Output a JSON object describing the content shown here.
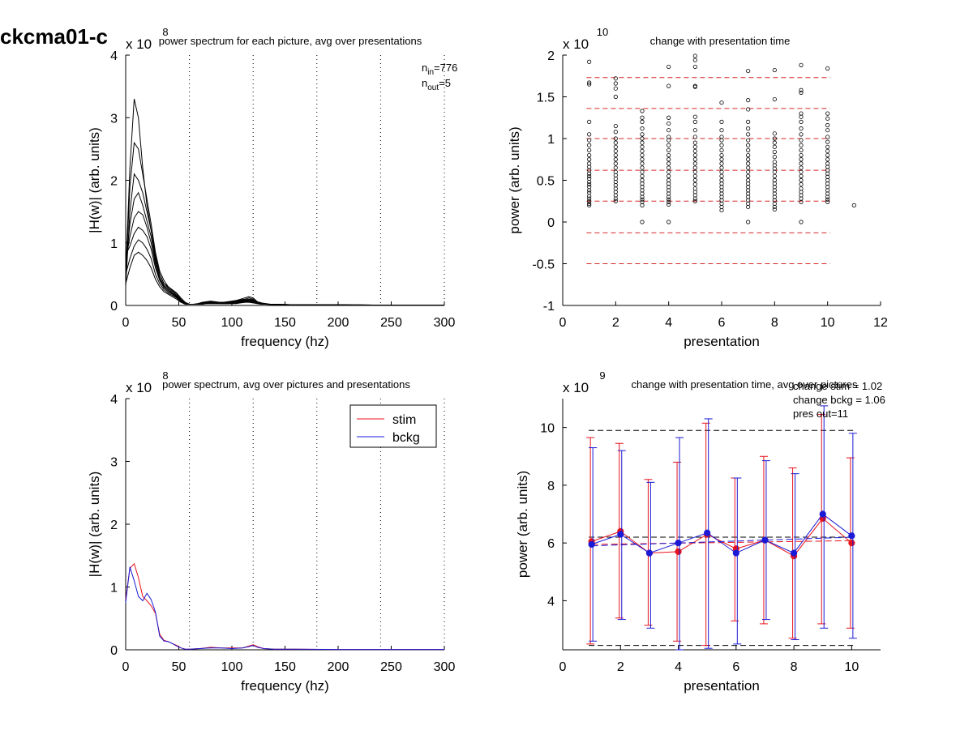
{
  "page_title": "ckcma01-c",
  "chart_data": [
    {
      "id": "p1",
      "type": "line",
      "title": "power spectrum for each picture, avg over presentations",
      "xlabel": "frequency (hz)",
      "ylabel": "|H(w)| (arb. units)",
      "multiplier": "x 10",
      "multiplier_exp": "8",
      "xlim": [
        0,
        300
      ],
      "ylim": [
        0,
        4
      ],
      "xticks": [
        0,
        50,
        100,
        150,
        200,
        250,
        300
      ],
      "yticks": [
        0,
        1,
        2,
        3,
        4
      ],
      "vlines": [
        60,
        120,
        180,
        240,
        300
      ],
      "annotation": {
        "n_in_base": "n",
        "n_in_sub": "in",
        "n_in_val": "=776",
        "n_out_base": "n",
        "n_out_sub": "out",
        "n_out_val": "=5"
      },
      "line_color": "#000000",
      "frequencies": [
        0,
        4,
        8,
        12,
        16,
        20,
        24,
        28,
        32,
        36,
        40,
        44,
        48,
        52,
        56,
        60,
        64,
        68,
        72,
        76,
        80,
        84,
        88,
        92,
        96,
        100,
        104,
        108,
        112,
        116,
        120,
        124,
        128,
        132,
        136,
        140,
        150,
        160,
        180,
        200,
        220,
        240,
        260,
        280,
        300
      ],
      "series": [
        {
          "values": [
            0.5,
            2.2,
            3.3,
            3.0,
            2.2,
            1.6,
            1.2,
            0.75,
            0.5,
            0.35,
            0.3,
            0.25,
            0.2,
            0.12,
            0.05,
            0.02,
            0.02,
            0.03,
            0.05,
            0.06,
            0.07,
            0.06,
            0.05,
            0.05,
            0.06,
            0.07,
            0.08,
            0.1,
            0.12,
            0.14,
            0.12,
            0.06,
            0.04,
            0.03,
            0.02,
            0.02,
            0.015,
            0.01,
            0.01,
            0.01,
            0.01,
            0.005,
            0.005,
            0.005,
            0.005
          ]
        },
        {
          "values": [
            0.4,
            1.9,
            2.6,
            2.5,
            2.1,
            1.7,
            1.3,
            0.85,
            0.55,
            0.4,
            0.3,
            0.24,
            0.18,
            0.1,
            0.04,
            0.02,
            0.02,
            0.03,
            0.04,
            0.05,
            0.06,
            0.06,
            0.05,
            0.05,
            0.05,
            0.06,
            0.07,
            0.09,
            0.1,
            0.12,
            0.1,
            0.05,
            0.03,
            0.03,
            0.02,
            0.02,
            0.015,
            0.01,
            0.01,
            0.01,
            0.01,
            0.005,
            0.005,
            0.005,
            0.005
          ]
        },
        {
          "values": [
            0.3,
            1.5,
            2.1,
            2.0,
            1.8,
            1.5,
            1.2,
            0.8,
            0.5,
            0.35,
            0.28,
            0.22,
            0.16,
            0.09,
            0.04,
            0.02,
            0.02,
            0.02,
            0.04,
            0.05,
            0.05,
            0.05,
            0.04,
            0.04,
            0.05,
            0.05,
            0.06,
            0.08,
            0.09,
            0.1,
            0.09,
            0.05,
            0.03,
            0.02,
            0.02,
            0.015,
            0.01,
            0.01,
            0.01,
            0.01,
            0.005,
            0.005,
            0.005,
            0.005,
            0.005
          ]
        },
        {
          "values": [
            0.6,
            1.3,
            1.7,
            1.8,
            1.6,
            1.35,
            1.1,
            0.7,
            0.45,
            0.32,
            0.26,
            0.2,
            0.15,
            0.08,
            0.03,
            0.02,
            0.02,
            0.02,
            0.03,
            0.04,
            0.05,
            0.05,
            0.04,
            0.04,
            0.04,
            0.05,
            0.05,
            0.07,
            0.08,
            0.09,
            0.08,
            0.04,
            0.03,
            0.02,
            0.02,
            0.015,
            0.01,
            0.01,
            0.01,
            0.01,
            0.005,
            0.005,
            0.005,
            0.005,
            0.005
          ]
        },
        {
          "values": [
            0.7,
            1.1,
            1.4,
            1.5,
            1.45,
            1.25,
            1.0,
            0.65,
            0.42,
            0.3,
            0.24,
            0.19,
            0.14,
            0.07,
            0.03,
            0.02,
            0.02,
            0.02,
            0.03,
            0.04,
            0.04,
            0.04,
            0.04,
            0.04,
            0.04,
            0.04,
            0.05,
            0.06,
            0.07,
            0.08,
            0.07,
            0.04,
            0.03,
            0.02,
            0.02,
            0.015,
            0.01,
            0.01,
            0.01,
            0.01,
            0.005,
            0.005,
            0.005,
            0.005,
            0.005
          ]
        },
        {
          "values": [
            0.8,
            0.95,
            1.15,
            1.25,
            1.2,
            1.1,
            0.9,
            0.6,
            0.4,
            0.28,
            0.22,
            0.18,
            0.13,
            0.07,
            0.03,
            0.02,
            0.02,
            0.02,
            0.03,
            0.03,
            0.04,
            0.04,
            0.03,
            0.03,
            0.03,
            0.04,
            0.04,
            0.05,
            0.06,
            0.07,
            0.06,
            0.04,
            0.02,
            0.02,
            0.015,
            0.01,
            0.01,
            0.01,
            0.01,
            0.01,
            0.005,
            0.005,
            0.005,
            0.005,
            0.005
          ]
        },
        {
          "values": [
            0.5,
            0.75,
            0.95,
            1.05,
            1.0,
            0.9,
            0.75,
            0.5,
            0.35,
            0.25,
            0.2,
            0.16,
            0.12,
            0.06,
            0.03,
            0.02,
            0.02,
            0.02,
            0.02,
            0.03,
            0.03,
            0.03,
            0.03,
            0.03,
            0.03,
            0.03,
            0.04,
            0.05,
            0.05,
            0.06,
            0.05,
            0.03,
            0.02,
            0.02,
            0.015,
            0.01,
            0.01,
            0.01,
            0.01,
            0.01,
            0.005,
            0.005,
            0.005,
            0.005,
            0.005
          ]
        },
        {
          "values": [
            0.35,
            0.6,
            0.8,
            0.85,
            0.8,
            0.72,
            0.6,
            0.42,
            0.3,
            0.22,
            0.18,
            0.14,
            0.1,
            0.05,
            0.02,
            0.02,
            0.02,
            0.02,
            0.02,
            0.03,
            0.03,
            0.03,
            0.03,
            0.03,
            0.03,
            0.03,
            0.03,
            0.04,
            0.05,
            0.05,
            0.04,
            0.03,
            0.02,
            0.02,
            0.015,
            0.01,
            0.01,
            0.01,
            0.01,
            0.01,
            0.005,
            0.005,
            0.005,
            0.005,
            0.005
          ]
        }
      ]
    },
    {
      "id": "p2",
      "type": "scatter",
      "title": "change with presentation time",
      "xlabel": "presentation",
      "ylabel": "power (arb. units)",
      "multiplier": "x 10",
      "multiplier_exp": "10",
      "xlim": [
        0,
        12
      ],
      "ylim": [
        -1,
        2
      ],
      "xticks": [
        0,
        2,
        4,
        6,
        8,
        10,
        12
      ],
      "yticks": [
        -1,
        -0.5,
        0,
        0.5,
        1,
        1.5,
        2
      ],
      "ytick_labels": [
        "-1",
        "-0.5",
        "0",
        "0.5",
        "1",
        "1.5",
        "2"
      ],
      "hlines": [
        1.73,
        1.36,
        1.0,
        0.62,
        0.25,
        -0.13,
        -0.5
      ],
      "hline_color": "#d62728",
      "points": [
        {
          "x": 1,
          "ys": [
            1.92,
            1.67,
            1.65,
            1.2,
            1.05,
            0.98,
            0.92,
            0.86,
            0.8,
            0.75,
            0.7,
            0.66,
            0.62,
            0.58,
            0.55,
            0.52,
            0.48,
            0.45,
            0.42,
            0.38,
            0.35,
            0.31,
            0.28,
            0.25,
            0.22,
            0.2
          ]
        },
        {
          "x": 2,
          "ys": [
            1.72,
            1.66,
            1.6,
            1.5,
            1.15,
            1.08,
            1.0,
            0.95,
            0.9,
            0.85,
            0.8,
            0.75,
            0.7,
            0.65,
            0.6,
            0.56,
            0.52,
            0.48,
            0.44,
            0.4,
            0.36,
            0.32,
            0.28,
            0.25
          ]
        },
        {
          "x": 3,
          "ys": [
            1.33,
            1.25,
            1.2,
            1.12,
            1.05,
            1.0,
            0.95,
            0.9,
            0.85,
            0.8,
            0.75,
            0.7,
            0.65,
            0.6,
            0.55,
            0.5,
            0.46,
            0.42,
            0.38,
            0.34,
            0.3,
            0.27,
            0.24,
            0.2,
            0.0
          ]
        },
        {
          "x": 4,
          "ys": [
            1.86,
            1.63,
            1.25,
            1.18,
            1.1,
            1.02,
            0.98,
            0.92,
            0.86,
            0.8,
            0.75,
            0.7,
            0.65,
            0.6,
            0.55,
            0.5,
            0.46,
            0.42,
            0.38,
            0.34,
            0.3,
            0.27,
            0.24,
            0.21,
            0.0
          ]
        },
        {
          "x": 5,
          "ys": [
            1.99,
            1.94,
            1.86,
            1.63,
            1.62,
            1.26,
            1.2,
            1.1,
            1.02,
            0.95,
            0.9,
            0.85,
            0.8,
            0.75,
            0.7,
            0.65,
            0.6,
            0.55,
            0.5,
            0.45,
            0.4,
            0.36,
            0.32,
            0.28,
            0.25
          ]
        },
        {
          "x": 6,
          "ys": [
            1.43,
            1.2,
            1.1,
            1.02,
            0.98,
            0.92,
            0.86,
            0.8,
            0.75,
            0.7,
            0.65,
            0.6,
            0.55,
            0.5,
            0.46,
            0.42,
            0.38,
            0.34,
            0.3,
            0.26,
            0.22,
            0.18,
            0.14
          ]
        },
        {
          "x": 7,
          "ys": [
            1.81,
            1.46,
            1.35,
            1.2,
            1.12,
            1.05,
            0.98,
            0.92,
            0.86,
            0.8,
            0.75,
            0.7,
            0.65,
            0.6,
            0.55,
            0.5,
            0.46,
            0.42,
            0.38,
            0.34,
            0.3,
            0.26,
            0.22,
            0.18,
            0.0
          ]
        },
        {
          "x": 8,
          "ys": [
            1.82,
            1.47,
            1.06,
            1.0,
            0.95,
            0.9,
            0.84,
            0.78,
            0.72,
            0.68,
            0.64,
            0.6,
            0.55,
            0.5,
            0.46,
            0.42,
            0.38,
            0.34,
            0.3,
            0.26,
            0.22,
            0.18,
            0.15
          ]
        },
        {
          "x": 9,
          "ys": [
            1.88,
            1.58,
            1.55,
            1.3,
            1.26,
            1.2,
            1.12,
            1.05,
            0.98,
            0.92,
            0.86,
            0.8,
            0.75,
            0.7,
            0.65,
            0.6,
            0.55,
            0.5,
            0.45,
            0.4,
            0.36,
            0.32,
            0.28,
            0.24,
            0.0
          ]
        },
        {
          "x": 10,
          "ys": [
            1.84,
            1.3,
            1.24,
            1.16,
            1.1,
            1.02,
            0.96,
            0.9,
            0.85,
            0.8,
            0.75,
            0.7,
            0.66,
            0.62,
            0.58,
            0.54,
            0.5,
            0.46,
            0.42,
            0.38,
            0.34,
            0.3,
            0.27,
            0.24
          ]
        },
        {
          "x": 11,
          "ys": [
            0.2
          ]
        }
      ]
    },
    {
      "id": "p3",
      "type": "line",
      "title": "power spectrum, avg over pictures and presentations",
      "xlabel": "frequency (hz)",
      "ylabel": "|H(w)| (arb. units)",
      "multiplier": "x 10",
      "multiplier_exp": "8",
      "xlim": [
        0,
        300
      ],
      "ylim": [
        0,
        4
      ],
      "xticks": [
        0,
        50,
        100,
        150,
        200,
        250,
        300
      ],
      "yticks": [
        0,
        1,
        2,
        3,
        4
      ],
      "vlines": [
        60,
        120,
        180,
        240,
        300
      ],
      "legend_position": "top-right",
      "frequencies": [
        0,
        4,
        8,
        12,
        16,
        20,
        24,
        28,
        32,
        36,
        40,
        44,
        48,
        52,
        56,
        60,
        70,
        80,
        90,
        100,
        110,
        116,
        120,
        124,
        130,
        140,
        160,
        200,
        250,
        300
      ],
      "series": [
        {
          "name": "stim",
          "color": "#e8121c",
          "values": [
            0.8,
            1.3,
            1.37,
            1.15,
            0.85,
            0.78,
            0.7,
            0.58,
            0.25,
            0.15,
            0.13,
            0.1,
            0.07,
            0.03,
            0.01,
            0.01,
            0.02,
            0.04,
            0.03,
            0.03,
            0.03,
            0.06,
            0.08,
            0.05,
            0.02,
            0.01,
            0.01,
            0.005,
            0.005,
            0.005
          ]
        },
        {
          "name": "bckg",
          "color": "#1a1ad6",
          "values": [
            0.75,
            1.32,
            1.1,
            0.85,
            0.78,
            0.9,
            0.8,
            0.6,
            0.22,
            0.14,
            0.13,
            0.1,
            0.06,
            0.03,
            0.01,
            0.01,
            0.02,
            0.03,
            0.03,
            0.02,
            0.03,
            0.05,
            0.07,
            0.04,
            0.02,
            0.01,
            0.01,
            0.005,
            0.005,
            0.005
          ]
        }
      ]
    },
    {
      "id": "p4",
      "type": "line",
      "title": "change with presentation time, avg over pictures",
      "xlabel": "presentation",
      "ylabel": "power (arb. units)",
      "multiplier": "x 10",
      "multiplier_exp": "9",
      "xlim": [
        0,
        11
      ],
      "ylim": [
        2.3,
        11
      ],
      "xticks": [
        0,
        2,
        4,
        6,
        8,
        10
      ],
      "yticks": [
        4,
        6,
        8,
        10
      ],
      "hlines_black": [
        9.9,
        6.2,
        2.45
      ],
      "annotations": [
        "change stim = 1.02",
        "change bckg = 1.06",
        "pres out=11"
      ],
      "x": [
        1,
        2,
        3,
        4,
        5,
        6,
        7,
        8,
        9,
        10
      ],
      "series": [
        {
          "name": "stim",
          "color": "#e8121c",
          "values": [
            6.05,
            6.4,
            5.65,
            5.7,
            6.3,
            5.8,
            6.1,
            5.55,
            6.85,
            6.0
          ],
          "upper": [
            9.65,
            9.45,
            8.2,
            8.8,
            10.15,
            8.25,
            9.0,
            8.6,
            10.45,
            8.95
          ],
          "lower": [
            2.5,
            3.4,
            3.15,
            2.6,
            2.45,
            3.3,
            3.2,
            2.7,
            3.2,
            3.05
          ],
          "trend": [
            5.95,
            6.08
          ]
        },
        {
          "name": "bckg",
          "color": "#1a1ad6",
          "values": [
            5.95,
            6.3,
            5.65,
            6.0,
            6.35,
            5.65,
            6.1,
            5.65,
            7.0,
            6.25
          ],
          "upper": [
            9.3,
            9.2,
            8.1,
            9.65,
            10.3,
            8.25,
            8.85,
            8.4,
            10.75,
            9.8
          ],
          "lower": [
            2.6,
            3.35,
            3.05,
            2.3,
            2.35,
            2.5,
            3.35,
            2.65,
            3.05,
            2.7
          ],
          "trend": [
            5.9,
            6.2
          ]
        }
      ]
    }
  ]
}
